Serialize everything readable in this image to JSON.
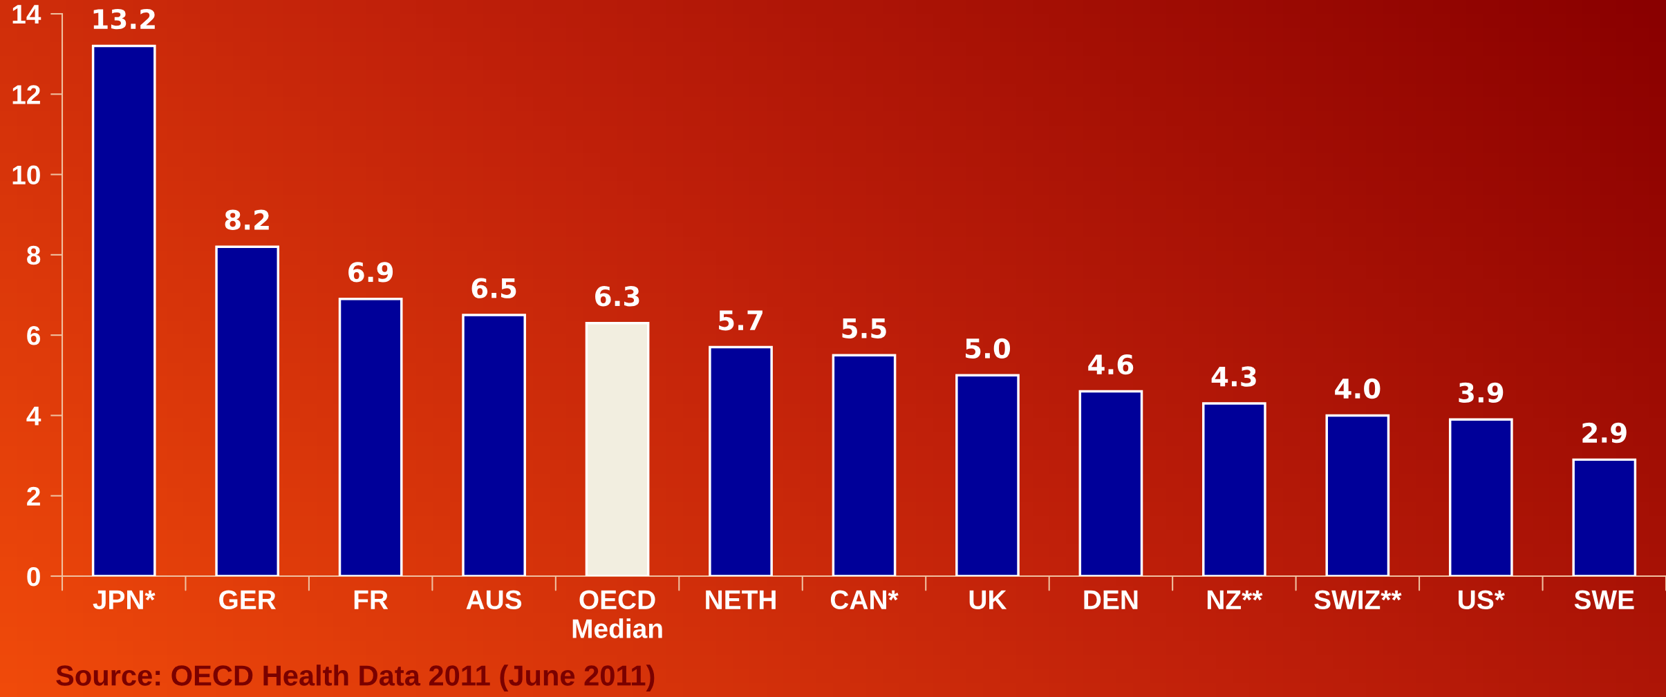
{
  "chart_data": {
    "type": "bar",
    "categories": [
      "JPN*",
      "GER",
      "FR",
      "AUS",
      "OECD\nMedian",
      "NETH",
      "CAN*",
      "UK",
      "DEN",
      "NZ**",
      "SWIZ**",
      "US*",
      "SWE"
    ],
    "values": [
      13.2,
      8.2,
      6.9,
      6.5,
      6.3,
      5.7,
      5.5,
      5.0,
      4.6,
      4.3,
      4.0,
      3.9,
      2.9
    ],
    "colors": [
      "#000099",
      "#000099",
      "#000099",
      "#000099",
      "#f2eee0",
      "#000099",
      "#000099",
      "#000099",
      "#000099",
      "#000099",
      "#000099",
      "#000099",
      "#000099"
    ],
    "value_labels": [
      "13.2",
      "8.2",
      "6.9",
      "6.5",
      "6.3",
      "5.7",
      "5.5",
      "5.0",
      "4.6",
      "4.3",
      "4.0",
      "3.9",
      "2.9"
    ],
    "ylim": [
      0,
      14
    ],
    "yticks": [
      0,
      2,
      4,
      6,
      8,
      10,
      12,
      14
    ],
    "grid": false,
    "legend": false,
    "annotations": [
      "Source: OECD Health Data 2011 (June 2011)"
    ]
  }
}
